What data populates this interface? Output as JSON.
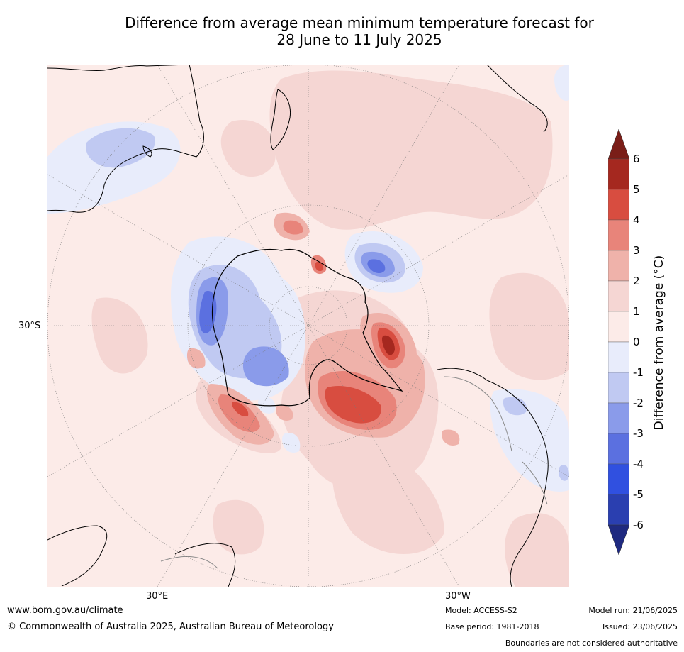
{
  "title_line1": "Difference from average mean minimum temperature forecast for",
  "title_line2": "28 June to 11 July 2025",
  "lat_label": "30°S",
  "lon_labels": {
    "left": "30°E",
    "right": "30°W"
  },
  "colorbar": {
    "label": "Difference from average (°C)",
    "ticks": [
      "6",
      "5",
      "4",
      "3",
      "2",
      "1",
      "0",
      "-1",
      "-2",
      "-3",
      "-4",
      "-5",
      "-6"
    ],
    "levels": [
      {
        "range": "5 to 6",
        "color": "#a5281f"
      },
      {
        "range": "4 to 5",
        "color": "#d84d40"
      },
      {
        "range": "3 to 4",
        "color": "#e8847a"
      },
      {
        "range": "2 to 3",
        "color": "#efb2aa"
      },
      {
        "range": "1 to 2",
        "color": "#f5d6d3"
      },
      {
        "range": "0 to 1",
        "color": "#fcebe8"
      },
      {
        "range": "-1 to 0",
        "color": "#e8ecfb"
      },
      {
        "range": "-2 to -1",
        "color": "#c0c9f2"
      },
      {
        "range": "-3 to -2",
        "color": "#8a9bea"
      },
      {
        "range": "-4 to -3",
        "color": "#5b70e0"
      },
      {
        "range": "-5 to -4",
        "color": "#3050e0"
      },
      {
        "range": "-6 to -5",
        "color": "#2a3fb0"
      }
    ],
    "above_color": "#7a1e18",
    "below_color": "#1f2a80"
  },
  "footer": {
    "url": "www.bom.gov.au/climate",
    "copyright": "© Commonwealth of Australia 2025, Australian Bureau of Meteorology",
    "model": "Model: ACCESS-S2",
    "base_period": "Base period: 1981-2018",
    "model_run": "Model run: 21/06/2025",
    "issued": "Issued: 23/06/2025",
    "disclaimer": "Boundaries are not considered authoritative"
  }
}
